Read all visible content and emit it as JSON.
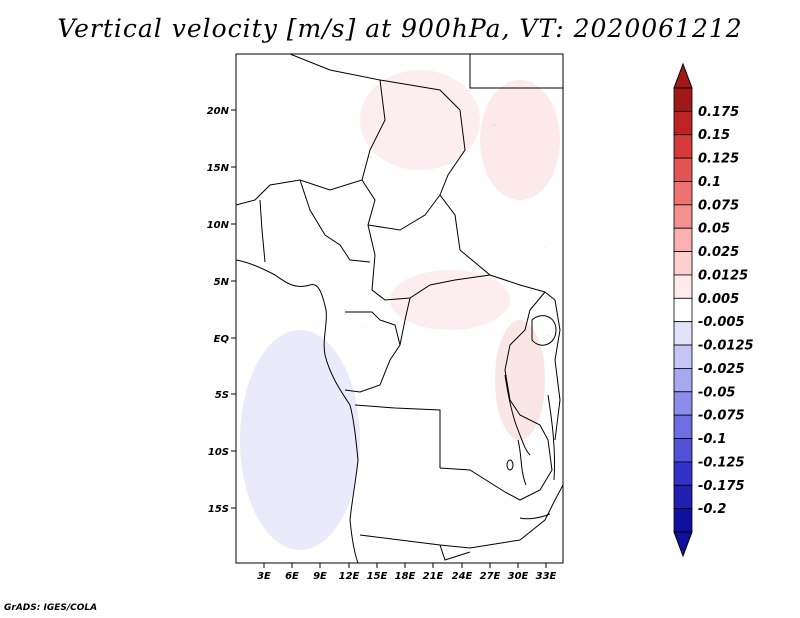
{
  "title": "Vertical velocity [m/s] at 900hPa, VT: 2020061212",
  "variable": "vertical velocity",
  "units": "m/s",
  "level": "900hPa",
  "valid_time": "2020061212",
  "lat_labels": [
    "20N",
    "15N",
    "10N",
    "5N",
    "EQ",
    "5S",
    "10S",
    "15S"
  ],
  "lon_labels": [
    "3E",
    "6E",
    "9E",
    "12E",
    "15E",
    "18E",
    "21E",
    "24E",
    "27E",
    "30E",
    "33E"
  ],
  "colorbar": {
    "labels": [
      "0.175",
      "0.15",
      "0.125",
      "0.1",
      "0.075",
      "0.05",
      "0.025",
      "0.0125",
      "0.005",
      "-0.005",
      "-0.0125",
      "-0.025",
      "-0.05",
      "-0.075",
      "-0.1",
      "-0.125",
      "-0.175",
      "-0.2"
    ],
    "colors": [
      "#a01818",
      "#bf2222",
      "#d63a3a",
      "#e45454",
      "#ee7272",
      "#f49090",
      "#f8b0b0",
      "#fcd0d0",
      "#feeaea",
      "#ffffff",
      "#e2e2fa",
      "#c6c6f6",
      "#a8a8f0",
      "#8c8cea",
      "#6e6ee2",
      "#5252d8",
      "#3232c8",
      "#2020b0",
      "#1010a0"
    ],
    "top_arrow_color": "#a01818",
    "bottom_arrow_color": "#1010a0"
  },
  "credit": "GrADS: IGES/COLA"
}
